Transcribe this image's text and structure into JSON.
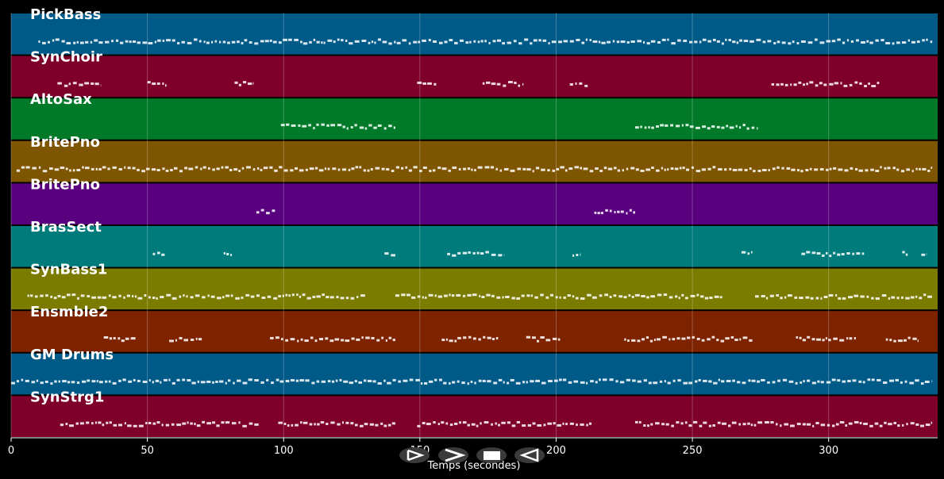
{
  "chart_data": {
    "type": "piano-roll",
    "xlabel": "Temps (secondes)",
    "xlim": [
      0,
      340
    ],
    "x_ticks": [
      0,
      50,
      100,
      150,
      200,
      250,
      300
    ],
    "grid": true,
    "tracks": [
      {
        "name": "PickBass",
        "color": "#005a87",
        "notes": [
          [
            10,
            338
          ]
        ]
      },
      {
        "name": "SynChoir",
        "color": "#7e002a",
        "notes": [
          [
            17,
            33
          ],
          [
            50,
            57
          ],
          [
            82,
            89
          ],
          [
            149,
            156
          ],
          [
            173,
            188
          ],
          [
            205,
            212
          ],
          [
            279,
            319
          ]
        ]
      },
      {
        "name": "AltoSax",
        "color": "#007a28",
        "notes": [
          [
            99,
            141
          ],
          [
            229,
            274
          ]
        ]
      },
      {
        "name": "BritePno",
        "color": "#7e5500",
        "notes": [
          [
            2,
            338
          ]
        ]
      },
      {
        "name": "BritePno",
        "color": "#58007e",
        "notes": [
          [
            90,
            97
          ],
          [
            214,
            229
          ]
        ]
      },
      {
        "name": "BrasSect",
        "color": "#007b7b",
        "notes": [
          [
            52,
            57
          ],
          [
            78,
            81
          ],
          [
            137,
            141
          ],
          [
            160,
            181
          ],
          [
            206,
            209
          ],
          [
            268,
            272
          ],
          [
            290,
            313
          ],
          [
            327,
            329
          ],
          [
            334,
            336
          ]
        ]
      },
      {
        "name": "SynBass1",
        "color": "#7b7b00",
        "notes": [
          [
            6,
            130
          ],
          [
            141,
            261
          ],
          [
            273,
            338
          ]
        ]
      },
      {
        "name": "Ensmble2",
        "color": "#7e2300",
        "notes": [
          [
            34,
            46
          ],
          [
            58,
            70
          ],
          [
            95,
            141
          ],
          [
            158,
            179
          ],
          [
            189,
            202
          ],
          [
            225,
            272
          ],
          [
            288,
            310
          ],
          [
            321,
            333
          ]
        ]
      },
      {
        "name": "GM Drums",
        "color": "#005a87",
        "notes": [
          [
            0,
            338
          ]
        ]
      },
      {
        "name": "SynStrg1",
        "color": "#7e002a",
        "notes": [
          [
            18,
            91
          ],
          [
            98,
            141
          ],
          [
            149,
            213
          ],
          [
            229,
            338
          ]
        ]
      }
    ]
  },
  "controls": [
    {
      "id": "play",
      "icon": "play-icon"
    },
    {
      "id": "fast-forward",
      "icon": "fast-forward-icon"
    },
    {
      "id": "stop",
      "icon": "stop-icon"
    },
    {
      "id": "rewind",
      "icon": "rewind-icon"
    }
  ]
}
